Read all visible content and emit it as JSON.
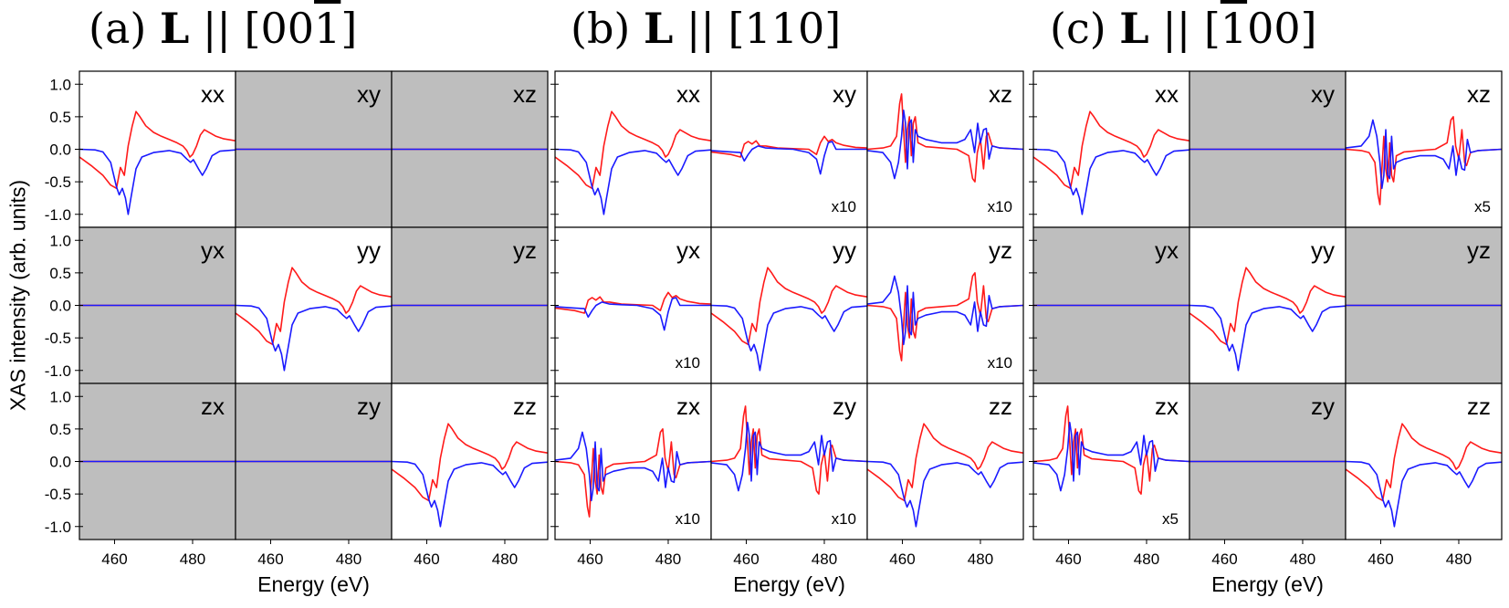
{
  "y_axis_label": "XAS intensity (arb. units)",
  "colors": {
    "red": "#ff1a1a",
    "blue": "#1a1aff",
    "grey_panel": "#bebebe",
    "frame": "#000000"
  },
  "chart_data": [
    {
      "type": "line",
      "group_id": "a",
      "title_prefix": "(a) ",
      "title_bold": "L",
      "title_suffix": " || [00",
      "title_overbar": "1",
      "title_end": "]",
      "xlabel": "Energy (eV)",
      "ylabel": "XAS intensity (arb. units)",
      "x_ticks": [
        460,
        480
      ],
      "y_ticks": [
        1.0,
        0.5,
        0.0,
        -0.5,
        -1.0
      ],
      "xlim": [
        451,
        491
      ],
      "ylim": [
        -1.2,
        1.2
      ],
      "series_names": [
        "red",
        "blue"
      ],
      "panels": [
        {
          "label": "xx",
          "component": "xx",
          "grey": false,
          "shape": "A",
          "scale_note": ""
        },
        {
          "label": "xy",
          "component": "xy",
          "grey": true,
          "shape": "zero",
          "scale_note": ""
        },
        {
          "label": "xz",
          "component": "xz",
          "grey": true,
          "shape": "zero",
          "scale_note": ""
        },
        {
          "label": "yx",
          "component": "yx",
          "grey": true,
          "shape": "zero",
          "scale_note": ""
        },
        {
          "label": "yy",
          "component": "yy",
          "grey": false,
          "shape": "A",
          "scale_note": ""
        },
        {
          "label": "yz",
          "component": "yz",
          "grey": true,
          "shape": "zero",
          "scale_note": ""
        },
        {
          "label": "zx",
          "component": "zx",
          "grey": true,
          "shape": "zero",
          "scale_note": ""
        },
        {
          "label": "zy",
          "component": "zy",
          "grey": true,
          "shape": "zero",
          "scale_note": ""
        },
        {
          "label": "zz",
          "component": "zz",
          "grey": false,
          "shape": "A",
          "scale_note": ""
        }
      ]
    },
    {
      "type": "line",
      "group_id": "b",
      "title_prefix": "(b) ",
      "title_bold": "L",
      "title_suffix": " || [110]",
      "title_overbar": "",
      "title_end": "",
      "xlabel": "Energy (eV)",
      "ylabel": "",
      "x_ticks": [
        460,
        480
      ],
      "y_ticks": [],
      "xlim": [
        451,
        491
      ],
      "ylim": [
        -1.2,
        1.2
      ],
      "series_names": [
        "red",
        "blue"
      ],
      "panels": [
        {
          "label": "xx",
          "component": "xx",
          "grey": false,
          "shape": "A",
          "scale_note": ""
        },
        {
          "label": "xy",
          "component": "xy",
          "grey": false,
          "shape": "small",
          "scale_note": "x10"
        },
        {
          "label": "xz",
          "component": "xz",
          "grey": false,
          "shape": "osc_up",
          "scale_note": "x10"
        },
        {
          "label": "yx",
          "component": "yx",
          "grey": false,
          "shape": "small",
          "scale_note": "x10"
        },
        {
          "label": "yy",
          "component": "yy",
          "grey": false,
          "shape": "A",
          "scale_note": ""
        },
        {
          "label": "yz",
          "component": "yz",
          "grey": false,
          "shape": "osc_down",
          "scale_note": "x10"
        },
        {
          "label": "zx",
          "component": "zx",
          "grey": false,
          "shape": "osc_down",
          "scale_note": "x10"
        },
        {
          "label": "zy",
          "component": "zy",
          "grey": false,
          "shape": "osc_up",
          "scale_note": "x10"
        },
        {
          "label": "zz",
          "component": "zz",
          "grey": false,
          "shape": "A",
          "scale_note": ""
        }
      ]
    },
    {
      "type": "line",
      "group_id": "c",
      "title_prefix": "(c) ",
      "title_bold": "L",
      "title_suffix": " || [",
      "title_overbar": "1",
      "title_end": "00]",
      "xlabel": "Energy (eV)",
      "ylabel": "",
      "x_ticks": [
        460,
        480
      ],
      "y_ticks": [],
      "xlim": [
        451,
        491
      ],
      "ylim": [
        -1.2,
        1.2
      ],
      "series_names": [
        "red",
        "blue"
      ],
      "panels": [
        {
          "label": "xx",
          "component": "xx",
          "grey": false,
          "shape": "A",
          "scale_note": ""
        },
        {
          "label": "xy",
          "component": "xy",
          "grey": true,
          "shape": "zero",
          "scale_note": ""
        },
        {
          "label": "xz",
          "component": "xz",
          "grey": false,
          "shape": "osc_down",
          "scale_note": "x5"
        },
        {
          "label": "yx",
          "component": "yx",
          "grey": true,
          "shape": "zero",
          "scale_note": ""
        },
        {
          "label": "yy",
          "component": "yy",
          "grey": false,
          "shape": "A",
          "scale_note": ""
        },
        {
          "label": "yz",
          "component": "yz",
          "grey": true,
          "shape": "zero",
          "scale_note": ""
        },
        {
          "label": "zx",
          "component": "zx",
          "grey": false,
          "shape": "osc_up",
          "scale_note": "x5"
        },
        {
          "label": "zy",
          "component": "zy",
          "grey": true,
          "shape": "zero",
          "scale_note": ""
        },
        {
          "label": "zz",
          "component": "zz",
          "grey": false,
          "shape": "A",
          "scale_note": ""
        }
      ]
    }
  ],
  "curve_points": {
    "A": {
      "red": [
        [
          451,
          -0.12
        ],
        [
          454,
          -0.25
        ],
        [
          457,
          -0.4
        ],
        [
          459,
          -0.55
        ],
        [
          460.5,
          -0.6
        ],
        [
          461.5,
          -0.28
        ],
        [
          462.5,
          -0.4
        ],
        [
          463.5,
          0.05
        ],
        [
          464.5,
          0.35
        ],
        [
          465.5,
          0.58
        ],
        [
          466.5,
          0.5
        ],
        [
          468,
          0.36
        ],
        [
          470,
          0.26
        ],
        [
          472,
          0.2
        ],
        [
          474,
          0.15
        ],
        [
          476,
          0.1
        ],
        [
          477.5,
          0.05
        ],
        [
          478.5,
          -0.02
        ],
        [
          479.3,
          -0.12
        ],
        [
          480,
          -0.08
        ],
        [
          481,
          0.05
        ],
        [
          482,
          0.22
        ],
        [
          483,
          0.3
        ],
        [
          484.5,
          0.25
        ],
        [
          486,
          0.2
        ],
        [
          488,
          0.16
        ],
        [
          491,
          0.13
        ]
      ],
      "blue": [
        [
          451,
          0.0
        ],
        [
          455,
          -0.01
        ],
        [
          457,
          -0.04
        ],
        [
          459,
          -0.2
        ],
        [
          460.5,
          -0.58
        ],
        [
          461.2,
          -0.7
        ],
        [
          462,
          -0.6
        ],
        [
          462.8,
          -0.75
        ],
        [
          463.5,
          -1.0
        ],
        [
          464.2,
          -0.75
        ],
        [
          465.5,
          -0.3
        ],
        [
          467,
          -0.12
        ],
        [
          470,
          -0.05
        ],
        [
          474,
          -0.02
        ],
        [
          477,
          -0.06
        ],
        [
          478.5,
          -0.15
        ],
        [
          479.5,
          -0.2
        ],
        [
          480.2,
          -0.16
        ],
        [
          481.5,
          -0.3
        ],
        [
          482.5,
          -0.4
        ],
        [
          483.5,
          -0.3
        ],
        [
          485,
          -0.1
        ],
        [
          487,
          -0.03
        ],
        [
          491,
          -0.01
        ]
      ]
    },
    "small": {
      "red": [
        [
          451,
          -0.04
        ],
        [
          456,
          -0.08
        ],
        [
          458.5,
          -0.12
        ],
        [
          459.5,
          0.08
        ],
        [
          460.5,
          0.12
        ],
        [
          461.5,
          0.08
        ],
        [
          462.5,
          0.13
        ],
        [
          463.5,
          0.05
        ],
        [
          465,
          0.05
        ],
        [
          468,
          0.02
        ],
        [
          472,
          0.01
        ],
        [
          476,
          0.0
        ],
        [
          478,
          -0.08
        ],
        [
          479,
          0.1
        ],
        [
          480,
          0.2
        ],
        [
          481,
          0.12
        ],
        [
          482,
          0.15
        ],
        [
          483,
          0.1
        ],
        [
          485,
          0.06
        ],
        [
          488,
          0.03
        ],
        [
          491,
          0.02
        ]
      ],
      "blue": [
        [
          451,
          -0.02
        ],
        [
          456,
          -0.04
        ],
        [
          458.5,
          -0.05
        ],
        [
          459.5,
          -0.18
        ],
        [
          460.5,
          -0.08
        ],
        [
          461.5,
          0.0
        ],
        [
          463,
          0.05
        ],
        [
          465,
          0.02
        ],
        [
          468,
          0.01
        ],
        [
          472,
          0.0
        ],
        [
          476,
          -0.05
        ],
        [
          478,
          -0.15
        ],
        [
          479,
          -0.38
        ],
        [
          480,
          -0.1
        ],
        [
          481,
          0.1
        ],
        [
          482,
          0.12
        ],
        [
          483,
          0.0
        ],
        [
          485,
          0.0
        ],
        [
          488,
          0.0
        ],
        [
          491,
          0.0
        ]
      ]
    },
    "osc_up": {
      "red": [
        [
          451,
          0.0
        ],
        [
          455,
          0.02
        ],
        [
          457,
          0.05
        ],
        [
          458.5,
          0.2
        ],
        [
          459.3,
          0.7
        ],
        [
          459.8,
          0.85
        ],
        [
          460.3,
          0.3
        ],
        [
          460.8,
          -0.2
        ],
        [
          461.3,
          0.3
        ],
        [
          461.8,
          0.5
        ],
        [
          462.3,
          -0.1
        ],
        [
          462.8,
          0.4
        ],
        [
          463.3,
          0.5
        ],
        [
          464,
          0.1
        ],
        [
          466,
          0.04
        ],
        [
          470,
          0.02
        ],
        [
          474,
          0.0
        ],
        [
          477,
          -0.1
        ],
        [
          478,
          -0.45
        ],
        [
          478.6,
          -0.5
        ],
        [
          479.2,
          -0.05
        ],
        [
          480,
          0.15
        ],
        [
          480.8,
          -0.3
        ],
        [
          481.5,
          0.2
        ],
        [
          482,
          0.25
        ],
        [
          483,
          0.05
        ],
        [
          485,
          0.02
        ],
        [
          491,
          0.0
        ]
      ],
      "blue": [
        [
          451,
          -0.02
        ],
        [
          455,
          -0.05
        ],
        [
          457,
          -0.2
        ],
        [
          458,
          -0.45
        ],
        [
          459,
          -0.2
        ],
        [
          459.8,
          0.2
        ],
        [
          460.3,
          0.6
        ],
        [
          460.8,
          0.4
        ],
        [
          461.3,
          -0.3
        ],
        [
          461.8,
          0.4
        ],
        [
          462.3,
          0.45
        ],
        [
          462.8,
          -0.2
        ],
        [
          463.3,
          0.3
        ],
        [
          464,
          0.2
        ],
        [
          466,
          0.15
        ],
        [
          470,
          0.1
        ],
        [
          474,
          0.1
        ],
        [
          476,
          0.15
        ],
        [
          477.5,
          0.3
        ],
        [
          478.5,
          -0.05
        ],
        [
          479.3,
          0.4
        ],
        [
          480,
          0.1
        ],
        [
          480.8,
          0.3
        ],
        [
          481.5,
          0.32
        ],
        [
          482.2,
          -0.15
        ],
        [
          483,
          0.05
        ],
        [
          485,
          0.02
        ],
        [
          491,
          0.0
        ]
      ]
    },
    "osc_down": {
      "red": [
        [
          451,
          0.0
        ],
        [
          455,
          -0.02
        ],
        [
          457,
          -0.05
        ],
        [
          458.5,
          -0.2
        ],
        [
          459.3,
          -0.7
        ],
        [
          459.8,
          -0.85
        ],
        [
          460.3,
          -0.3
        ],
        [
          460.8,
          0.2
        ],
        [
          461.3,
          -0.3
        ],
        [
          461.8,
          -0.5
        ],
        [
          462.3,
          0.1
        ],
        [
          462.8,
          -0.4
        ],
        [
          463.3,
          -0.5
        ],
        [
          464,
          -0.1
        ],
        [
          466,
          -0.04
        ],
        [
          470,
          -0.02
        ],
        [
          474,
          0.0
        ],
        [
          477,
          0.1
        ],
        [
          478,
          0.45
        ],
        [
          478.6,
          0.5
        ],
        [
          479.2,
          0.05
        ],
        [
          480,
          -0.15
        ],
        [
          480.8,
          0.3
        ],
        [
          481.5,
          -0.2
        ],
        [
          482,
          -0.25
        ],
        [
          483,
          -0.05
        ],
        [
          485,
          -0.02
        ],
        [
          491,
          0.0
        ]
      ],
      "blue": [
        [
          451,
          0.02
        ],
        [
          455,
          0.05
        ],
        [
          457,
          0.2
        ],
        [
          458,
          0.45
        ],
        [
          459,
          0.2
        ],
        [
          459.8,
          -0.2
        ],
        [
          460.3,
          -0.6
        ],
        [
          460.8,
          -0.4
        ],
        [
          461.3,
          0.3
        ],
        [
          461.8,
          -0.4
        ],
        [
          462.3,
          -0.45
        ],
        [
          462.8,
          0.2
        ],
        [
          463.3,
          -0.3
        ],
        [
          464,
          -0.2
        ],
        [
          466,
          -0.15
        ],
        [
          470,
          -0.1
        ],
        [
          474,
          -0.1
        ],
        [
          476,
          -0.15
        ],
        [
          477.5,
          -0.3
        ],
        [
          478.5,
          0.05
        ],
        [
          479.3,
          -0.4
        ],
        [
          480,
          -0.1
        ],
        [
          480.8,
          -0.3
        ],
        [
          481.5,
          -0.32
        ],
        [
          482.2,
          0.15
        ],
        [
          483,
          -0.05
        ],
        [
          485,
          -0.02
        ],
        [
          491,
          0.0
        ]
      ]
    },
    "zero": {
      "red": [
        [
          451,
          0.0
        ],
        [
          491,
          0.0
        ]
      ],
      "blue": [
        [
          451,
          0.0
        ],
        [
          491,
          0.0
        ]
      ]
    }
  }
}
